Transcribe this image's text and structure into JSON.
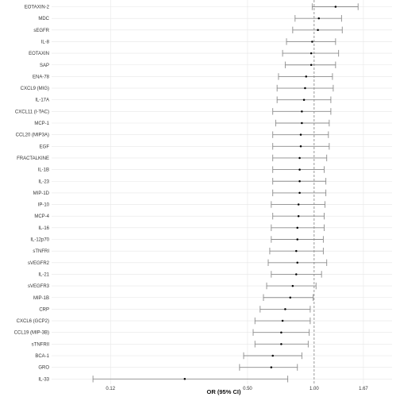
{
  "chart_data": {
    "type": "forest",
    "xlabel": "OR (95% CI)",
    "x_scale": "log",
    "xlim": [
      0.065,
      2.25
    ],
    "x_ticks": [
      0.12,
      0.5,
      1.0,
      1.67
    ],
    "x_tick_labels": [
      "0.12",
      "0.50",
      "1.00",
      "1.67"
    ],
    "reference_line": 1.0,
    "grid": true,
    "colors": {
      "whisker": "#8c8c8c",
      "point": "#000000",
      "grid": "#e6e6e6",
      "reference": "#7f7f7f"
    },
    "rows": [
      {
        "label": "EOTAXIN-2",
        "or": 1.25,
        "lo": 0.98,
        "hi": 1.58
      },
      {
        "label": "MDC",
        "or": 1.05,
        "lo": 0.82,
        "hi": 1.33
      },
      {
        "label": "sEGFR",
        "or": 1.04,
        "lo": 0.8,
        "hi": 1.34
      },
      {
        "label": "IL-8",
        "or": 0.98,
        "lo": 0.75,
        "hi": 1.25
      },
      {
        "label": "EOTAXIN",
        "or": 0.97,
        "lo": 0.72,
        "hi": 1.29
      },
      {
        "label": "SAP",
        "or": 0.97,
        "lo": 0.74,
        "hi": 1.25
      },
      {
        "label": "ENA-78",
        "or": 0.92,
        "lo": 0.69,
        "hi": 1.21
      },
      {
        "label": "CXCL9 (MIG)",
        "or": 0.91,
        "lo": 0.68,
        "hi": 1.22
      },
      {
        "label": "IL-17A",
        "or": 0.9,
        "lo": 0.68,
        "hi": 1.19
      },
      {
        "label": "CXCL11 (I-TAC)",
        "or": 0.88,
        "lo": 0.65,
        "hi": 1.19
      },
      {
        "label": "MCP-1",
        "or": 0.88,
        "lo": 0.67,
        "hi": 1.17
      },
      {
        "label": "CCL20 (MIP3A)",
        "or": 0.87,
        "lo": 0.65,
        "hi": 1.16
      },
      {
        "label": "EGF",
        "or": 0.87,
        "lo": 0.65,
        "hi": 1.17
      },
      {
        "label": "FRACTALKINE",
        "or": 0.86,
        "lo": 0.65,
        "hi": 1.14
      },
      {
        "label": "IL-1B",
        "or": 0.86,
        "lo": 0.65,
        "hi": 1.11
      },
      {
        "label": "IL-23",
        "or": 0.86,
        "lo": 0.65,
        "hi": 1.13
      },
      {
        "label": "MIP-1D",
        "or": 0.86,
        "lo": 0.65,
        "hi": 1.13
      },
      {
        "label": "IP-10",
        "or": 0.85,
        "lo": 0.64,
        "hi": 1.12
      },
      {
        "label": "MCP-4",
        "or": 0.85,
        "lo": 0.65,
        "hi": 1.11
      },
      {
        "label": "IL-16",
        "or": 0.84,
        "lo": 0.64,
        "hi": 1.11
      },
      {
        "label": "IL-12p70",
        "or": 0.84,
        "lo": 0.64,
        "hi": 1.1
      },
      {
        "label": "sTNFRI",
        "or": 0.83,
        "lo": 0.63,
        "hi": 1.1
      },
      {
        "label": "sVEGFR2",
        "or": 0.84,
        "lo": 0.62,
        "hi": 1.14
      },
      {
        "label": "IL-21",
        "or": 0.83,
        "lo": 0.64,
        "hi": 1.08
      },
      {
        "label": "sVEGFR3",
        "or": 0.8,
        "lo": 0.61,
        "hi": 1.02
      },
      {
        "label": "MIP-1B",
        "or": 0.78,
        "lo": 0.59,
        "hi": 0.99
      },
      {
        "label": "CRP",
        "or": 0.74,
        "lo": 0.57,
        "hi": 0.96
      },
      {
        "label": "CXCL6 (GCP2)",
        "or": 0.72,
        "lo": 0.54,
        "hi": 0.96
      },
      {
        "label": "CCL19 (MIP-3B)",
        "or": 0.71,
        "lo": 0.53,
        "hi": 0.95
      },
      {
        "label": "sTNFRII",
        "or": 0.71,
        "lo": 0.54,
        "hi": 0.94
      },
      {
        "label": "BCA-1",
        "or": 0.65,
        "lo": 0.48,
        "hi": 0.88
      },
      {
        "label": "GRO",
        "or": 0.64,
        "lo": 0.46,
        "hi": 0.84
      },
      {
        "label": "IL-33",
        "or": 0.26,
        "lo": 0.1,
        "hi": 0.76
      }
    ]
  }
}
